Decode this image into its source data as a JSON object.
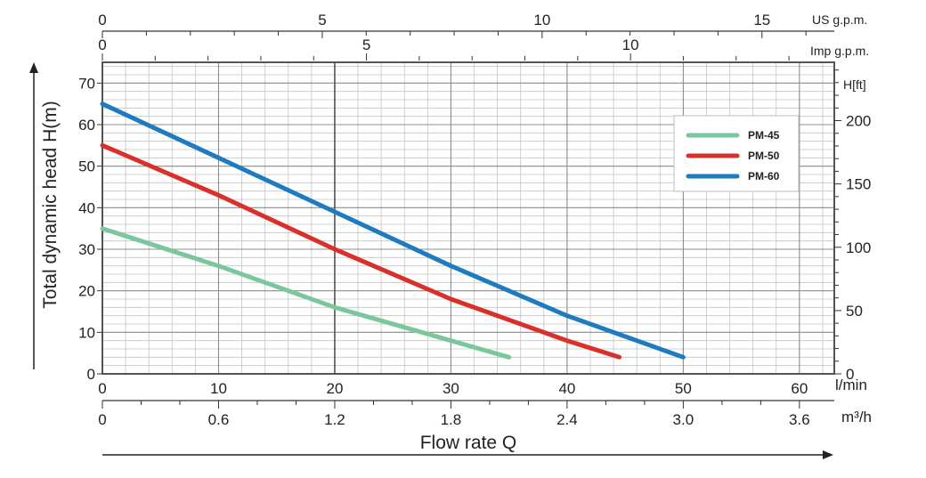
{
  "chart_data": {
    "type": "line",
    "xlabel": "Flow rate Q",
    "ylabel": "Total dynamic head H(m)",
    "x_unit": "l/min",
    "xlim": [
      0,
      63
    ],
    "ylim": [
      0,
      75
    ],
    "x_ticks": [
      0,
      10,
      20,
      30,
      40,
      50,
      60
    ],
    "y_ticks": [
      0,
      10,
      20,
      30,
      40,
      50,
      60,
      70
    ],
    "grid": true,
    "legend_position": "top-right",
    "series": [
      {
        "name": "PM-45",
        "color": "#7ac79b",
        "x": [
          0,
          10,
          20,
          30,
          35
        ],
        "y": [
          35,
          26,
          16,
          8,
          4
        ]
      },
      {
        "name": "PM-50",
        "color": "#d9302c",
        "x": [
          0,
          10,
          20,
          30,
          40,
          44.5
        ],
        "y": [
          55,
          43,
          30,
          18,
          8,
          4
        ]
      },
      {
        "name": "PM-60",
        "color": "#1e7bbf",
        "x": [
          0,
          10,
          20,
          30,
          40,
          50
        ],
        "y": [
          65,
          52,
          39,
          26,
          14,
          4
        ]
      }
    ],
    "secondary_axes": {
      "us_gpm": {
        "label": "US g.p.m.",
        "ticks": [
          0,
          5,
          10,
          15
        ]
      },
      "imp_gpm": {
        "label": "Imp g.p.m.",
        "ticks": [
          0,
          5,
          10
        ]
      },
      "head_ft": {
        "label": "H[ft]",
        "ticks": [
          0,
          50,
          100,
          150,
          200
        ]
      },
      "m3h": {
        "label": "m³/h",
        "ticks": [
          "0",
          "0.6",
          "1.2",
          "1.8",
          "2.4",
          "3.0",
          "3.6"
        ]
      }
    }
  }
}
